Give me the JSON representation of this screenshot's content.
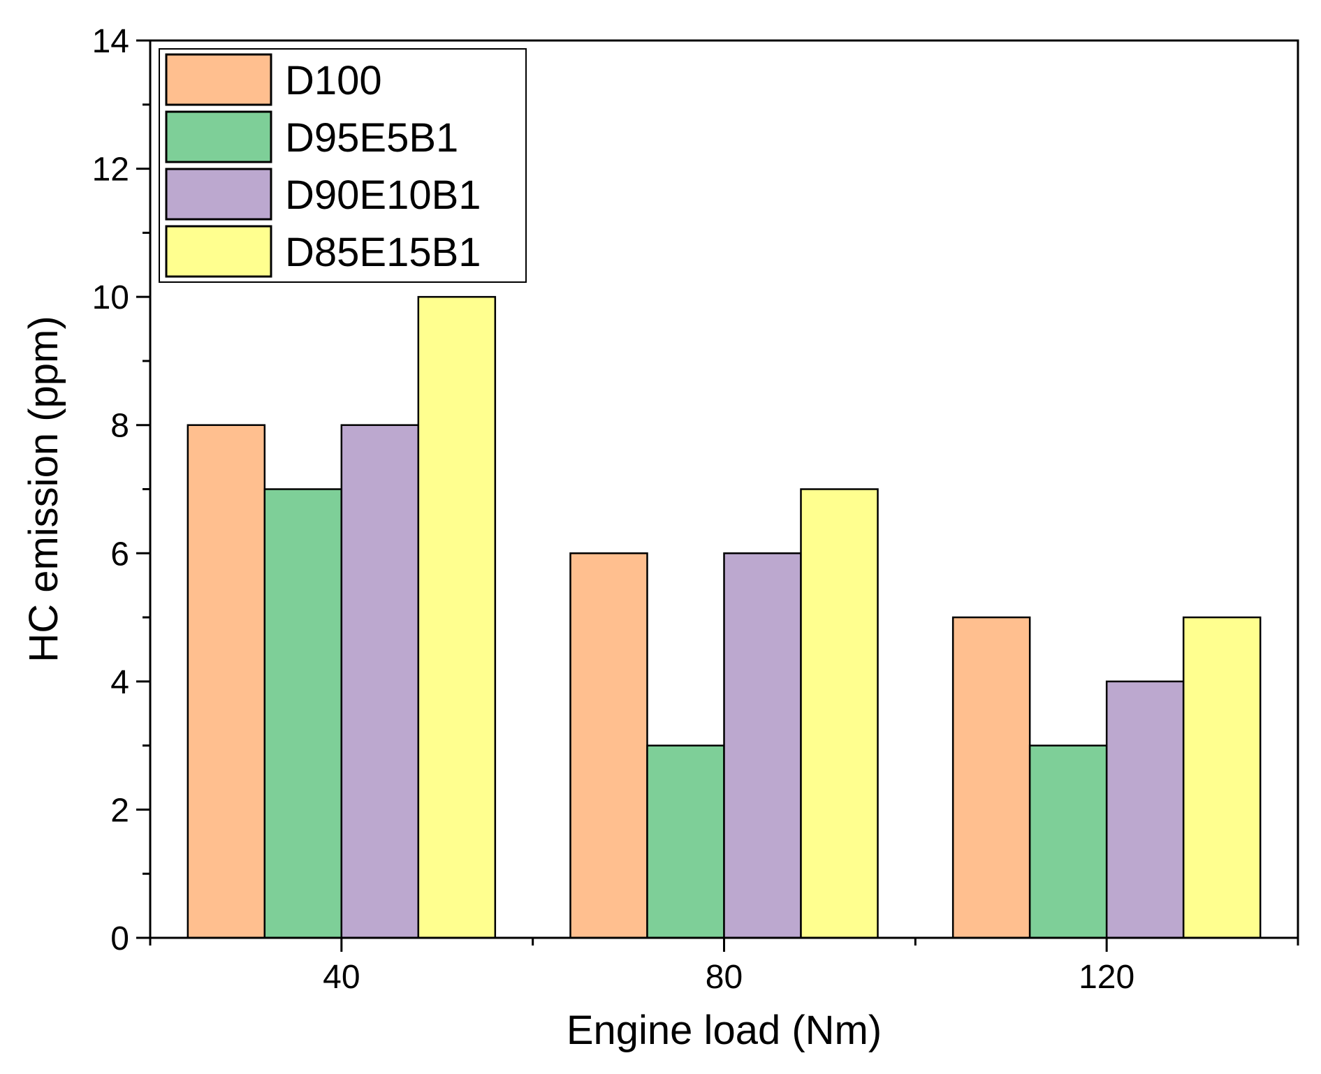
{
  "chart_data": {
    "type": "bar",
    "title": "",
    "xlabel": "Engine load (Nm)",
    "ylabel": "HC emission (ppm)",
    "categories": [
      "40",
      "80",
      "120"
    ],
    "ylim": [
      0,
      14
    ],
    "yticks": [
      0,
      2,
      4,
      6,
      8,
      10,
      12,
      14
    ],
    "legend_position": "top-left",
    "grid": false,
    "series": [
      {
        "name": "D100",
        "color": "#FFBF8F",
        "values": [
          8,
          6,
          5
        ]
      },
      {
        "name": "D95E5B1",
        "color": "#7ECF98",
        "values": [
          7,
          3,
          3
        ]
      },
      {
        "name": "D90E10B1",
        "color": "#BCA8CF",
        "values": [
          8,
          6,
          4
        ]
      },
      {
        "name": "D85E15B1",
        "color": "#FFFF8F",
        "values": [
          10,
          7,
          5
        ]
      }
    ]
  }
}
